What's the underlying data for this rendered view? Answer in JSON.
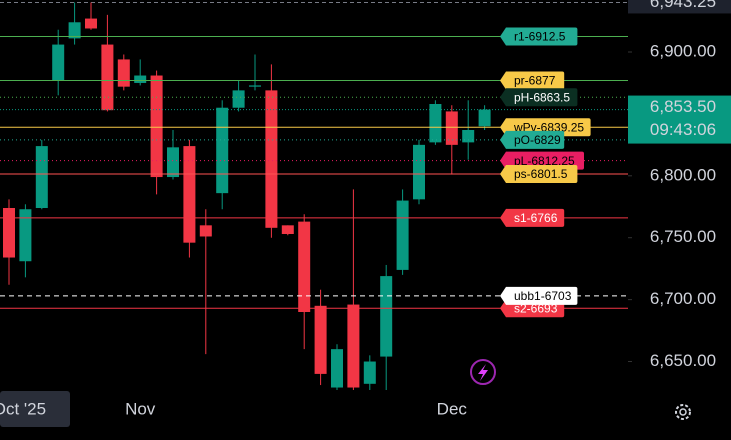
{
  "chart_data": {
    "type": "candlestick",
    "categories": [
      null,
      "Oct '25",
      null,
      null,
      null,
      null,
      null,
      null,
      "Nov",
      null,
      null,
      null,
      null,
      null,
      null,
      null,
      null,
      null,
      null,
      null,
      null,
      null,
      null,
      null,
      null,
      null,
      null,
      "Dec",
      null,
      null
    ],
    "open": [
      6774,
      6731,
      6774,
      6877,
      6911,
      6927,
      6906,
      6894,
      6875,
      6881,
      6799,
      6824,
      6760,
      6786,
      6855,
      6872,
      6869,
      6760,
      6763,
      6695,
      6629,
      6696,
      6632,
      6654,
      6724,
      6781,
      6827,
      6852,
      6827,
      6840
    ],
    "high": [
      6781,
      6777,
      6829,
      6918,
      6940,
      6940,
      6930,
      6898,
      6894,
      6885,
      6837,
      6829,
      6773,
      6861,
      6877,
      6898,
      6890,
      6760,
      6769,
      6708,
      6664,
      6789,
      6655,
      6728,
      6789,
      6829,
      6861,
      6857,
      6861,
      6857
    ],
    "low": [
      6712,
      6718,
      6773,
      6865,
      6906,
      6918,
      6852,
      6869,
      6873,
      6785,
      6797,
      6734,
      6656,
      6773,
      6852,
      6869,
      6750,
      6752,
      6660,
      6631,
      6627,
      6627,
      6627,
      6627,
      6720,
      6777,
      6825,
      6801,
      6813,
      6837
    ],
    "close": [
      6734,
      6773,
      6824,
      6906,
      6924,
      6919,
      6853,
      6872,
      6881,
      6799,
      6823,
      6746,
      6751,
      6855,
      6869,
      6873,
      6758,
      6753,
      6690,
      6640,
      6660,
      6629,
      6650,
      6719,
      6780,
      6825,
      6858,
      6825,
      6837,
      6853.5
    ],
    "up_color": "#089981",
    "down_color": "#f23645",
    "ylim": [
      6627,
      6942
    ],
    "yticks": [
      {
        "value": 6650,
        "label": "6,650.00"
      },
      {
        "value": 6700,
        "label": "6,700.00"
      },
      {
        "value": 6750,
        "label": "6,750.00"
      },
      {
        "value": 6800,
        "label": "6,800.00"
      },
      {
        "value": 6850,
        "label": "6,850.00"
      },
      {
        "value": 6900,
        "label": "6,900.00"
      }
    ],
    "levels": [
      {
        "label": "r1-6912.5",
        "value": 6912.5,
        "color": "#4caf50",
        "label_color": "#22ab94",
        "text_color": "#000000",
        "style": "solid"
      },
      {
        "label": "pr-6877",
        "value": 6877,
        "color": "#4caf50",
        "label_color": "#f7c948",
        "text_color": "#000000",
        "style": "solid"
      },
      {
        "label": "wPv-6839.25",
        "value": 6839.25,
        "color": "#f7c948",
        "label_color": "#f7c948",
        "text_color": "#000000",
        "style": "solid"
      },
      {
        "label": "pO-6829",
        "value": 6829,
        "color": "#22ab94",
        "label_color": "#22ab94",
        "text_color": "#000000",
        "style": "dotted"
      },
      {
        "label": "pH-6863.5",
        "value": 6863.5,
        "color": "#4caf50",
        "label_color": "#0b2f22",
        "text_color": "#ffffff",
        "style": "dotted"
      },
      {
        "label": "pL-6812.25",
        "value": 6812.25,
        "color": "#e91e63",
        "label_color": "#e91e63",
        "text_color": "#000000",
        "style": "dotted"
      },
      {
        "label": "ps-6801.5",
        "value": 6801.5,
        "color": "#ff5252",
        "label_color": "#f7c948",
        "text_color": "#000000",
        "style": "solid"
      },
      {
        "label": "s1-6766",
        "value": 6766,
        "color": "#f23645",
        "label_color": "#f23645",
        "text_color": "#ffffff",
        "style": "solid"
      },
      {
        "label": "s2-6693",
        "value": 6693,
        "color": "#f23645",
        "label_color": "#f23645",
        "text_color": "#ffffff",
        "style": "solid"
      },
      {
        "label": "ubb1-6703",
        "value": 6703,
        "color": "#ffffff",
        "label_color": "#ffffff",
        "text_color": "#000000",
        "style": "dashed"
      }
    ],
    "last_price": {
      "value": 6853.5,
      "label": "6,853.50",
      "color": "#089981"
    },
    "countdown": "09:43:06",
    "top_price": {
      "value": 6943.25,
      "label": "6,943.25"
    }
  }
}
